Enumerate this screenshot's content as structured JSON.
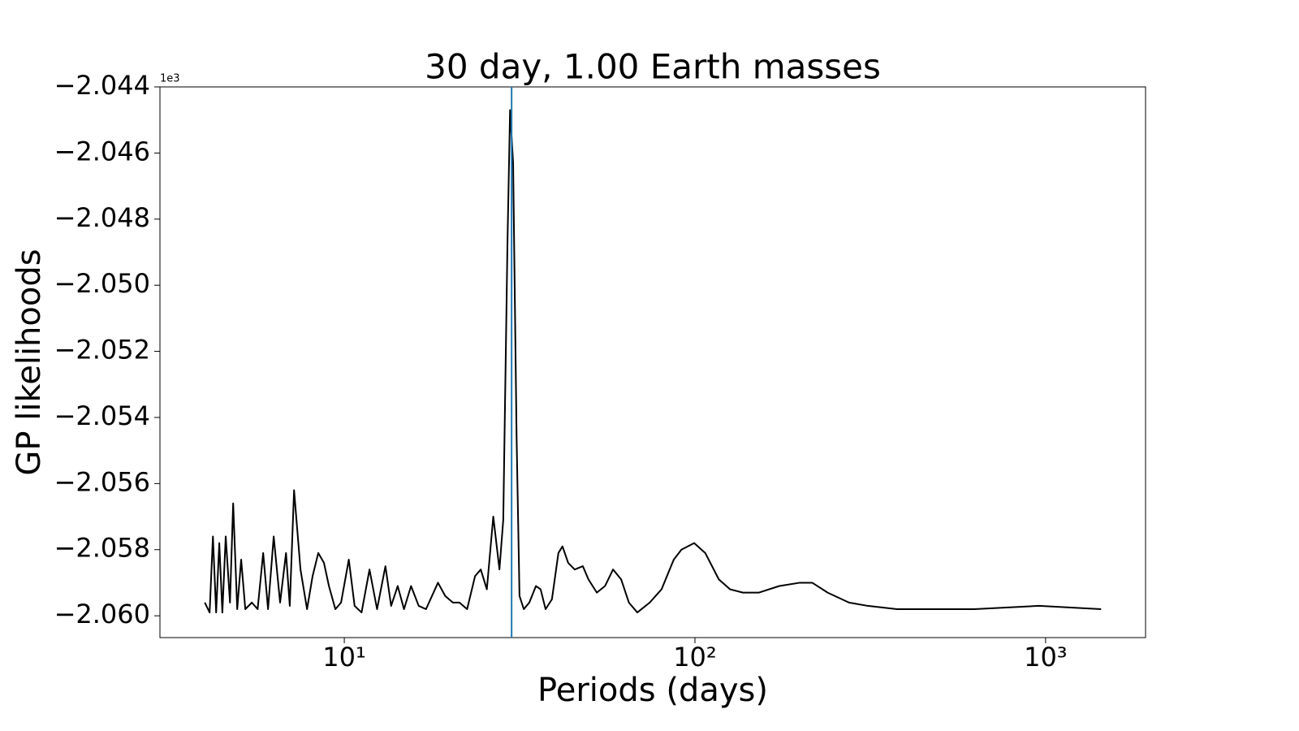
{
  "chart_data": {
    "type": "line",
    "title": "30 day, 1.00 Earth masses",
    "x_label": "Periods (days)",
    "y_label": "GP likelihoods",
    "y_offset_label": "1e3",
    "x_scale": "log",
    "color": "#000000",
    "grid": false,
    "xlim": [
      2.98,
      1928
    ],
    "ylim": [
      -2.06066,
      -2.044
    ],
    "xticks": [
      {
        "value": 10,
        "label": "10¹"
      },
      {
        "value": 100,
        "label": "10²"
      },
      {
        "value": 1000,
        "label": "10³"
      }
    ],
    "yticks": [
      {
        "value": -2.044,
        "label": "−2.044"
      },
      {
        "value": -2.046,
        "label": "−2.046"
      },
      {
        "value": -2.048,
        "label": "−2.048"
      },
      {
        "value": -2.05,
        "label": "−2.050"
      },
      {
        "value": -2.052,
        "label": "−2.052"
      },
      {
        "value": -2.054,
        "label": "−2.054"
      },
      {
        "value": -2.056,
        "label": "−2.056"
      },
      {
        "value": -2.058,
        "label": "−2.058"
      },
      {
        "value": -2.06,
        "label": "−2.060"
      }
    ],
    "vline": {
      "x": 30,
      "color": "#1f77b4"
    },
    "x": [
      4.0,
      4.13,
      4.22,
      4.31,
      4.4,
      4.49,
      4.59,
      4.72,
      4.82,
      4.95,
      5.08,
      5.22,
      5.45,
      5.66,
      5.87,
      6.06,
      6.29,
      6.56,
      6.82,
      6.99,
      7.19,
      7.5,
      7.83,
      8.12,
      8.43,
      8.75,
      9.04,
      9.43,
      9.79,
      10.3,
      10.7,
      11.2,
      11.8,
      12.4,
      13.1,
      13.6,
      14.2,
      14.8,
      15.5,
      16.3,
      17.1,
      18.5,
      19.4,
      20.4,
      21.3,
      22.4,
      23.6,
      24.5,
      25.5,
      26.6,
      27.7,
      28.4,
      29.2,
      29.7,
      30.3,
      31.0,
      31.6,
      32.5,
      33.7,
      35.2,
      36.3,
      37.5,
      39.1,
      40.8,
      41.9,
      43.5,
      45.4,
      47.9,
      49.7,
      52.5,
      55.4,
      58.4,
      61.6,
      64.8,
      68.5,
      74.3,
      80.3,
      87.0,
      91.5,
      99.5,
      107,
      117,
      126,
      137,
      152,
      174,
      199,
      216,
      239,
      275,
      311,
      377,
      457,
      626,
      957,
      1440
    ],
    "values": [
      -2.0596,
      -2.0599,
      -2.0576,
      -2.0599,
      -2.0578,
      -2.0599,
      -2.0576,
      -2.0596,
      -2.0566,
      -2.0598,
      -2.0583,
      -2.0598,
      -2.0596,
      -2.0598,
      -2.0581,
      -2.0598,
      -2.0576,
      -2.0596,
      -2.0581,
      -2.0597,
      -2.0562,
      -2.0586,
      -2.0598,
      -2.0588,
      -2.0581,
      -2.0584,
      -2.0591,
      -2.0598,
      -2.0596,
      -2.0583,
      -2.0597,
      -2.0599,
      -2.0586,
      -2.0598,
      -2.0585,
      -2.0597,
      -2.0591,
      -2.0598,
      -2.0591,
      -2.0597,
      -2.0598,
      -2.059,
      -2.0594,
      -2.0596,
      -2.0596,
      -2.0598,
      -2.0588,
      -2.0586,
      -2.0592,
      -2.057,
      -2.0586,
      -2.0571,
      -2.0487,
      -2.0447,
      -2.0463,
      -2.0546,
      -2.0594,
      -2.0598,
      -2.0596,
      -2.0591,
      -2.0592,
      -2.0598,
      -2.0595,
      -2.0581,
      -2.0579,
      -2.0584,
      -2.0586,
      -2.0585,
      -2.0589,
      -2.0593,
      -2.0591,
      -2.0586,
      -2.0589,
      -2.0596,
      -2.0599,
      -2.0596,
      -2.0592,
      -2.0583,
      -2.058,
      -2.0578,
      -2.0581,
      -2.0589,
      -2.0592,
      -2.0593,
      -2.0593,
      -2.0591,
      -2.059,
      -2.059,
      -2.0593,
      -2.0596,
      -2.0597,
      -2.0598,
      -2.0598,
      -2.0598,
      -2.0597,
      -2.0598
    ]
  }
}
